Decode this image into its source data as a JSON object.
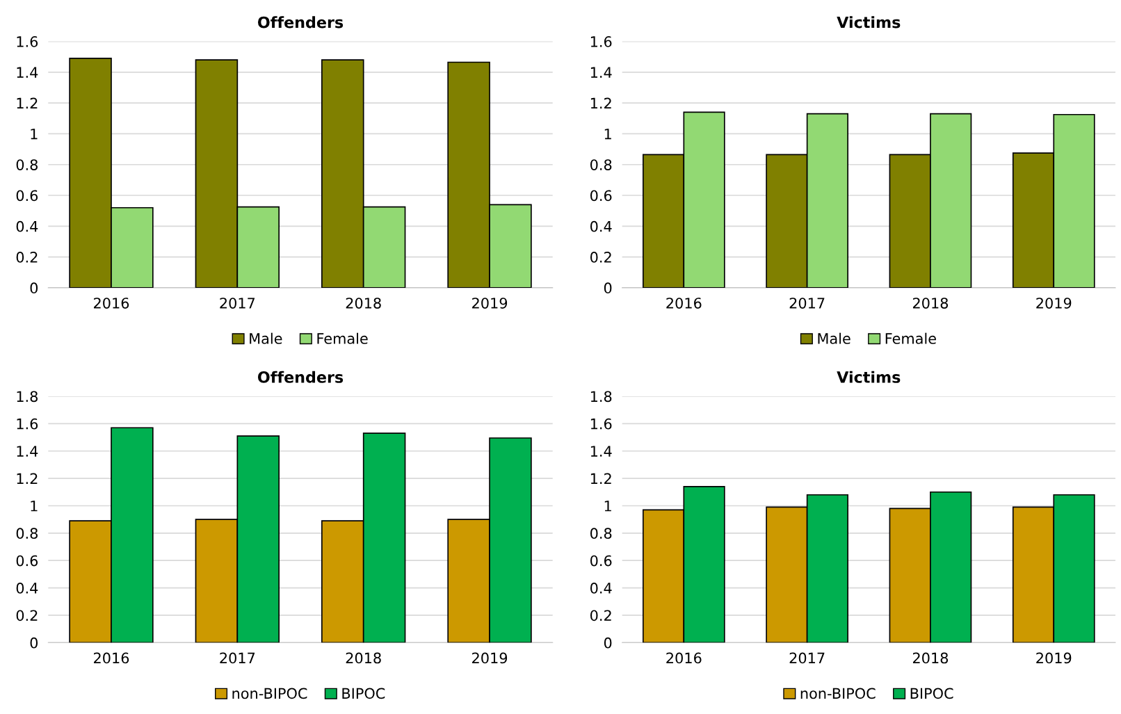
{
  "chart_data": [
    {
      "type": "bar",
      "title": "Offenders",
      "categories": [
        "2016",
        "2017",
        "2018",
        "2019"
      ],
      "series": [
        {
          "name": "Male",
          "color": "#808000",
          "values": [
            1.49,
            1.48,
            1.48,
            1.465
          ]
        },
        {
          "name": "Female",
          "color": "#92d973",
          "values": [
            0.52,
            0.525,
            0.525,
            0.54
          ]
        }
      ],
      "ylim": [
        0,
        1.6
      ],
      "yticks": [
        0,
        0.2,
        0.4,
        0.6,
        0.8,
        1,
        1.2,
        1.4,
        1.6
      ],
      "grid": "y",
      "legend": "bottom"
    },
    {
      "type": "bar",
      "title": "Victims",
      "categories": [
        "2016",
        "2017",
        "2018",
        "2019"
      ],
      "series": [
        {
          "name": "Male",
          "color": "#808000",
          "values": [
            0.865,
            0.865,
            0.865,
            0.875
          ]
        },
        {
          "name": "Female",
          "color": "#92d973",
          "values": [
            1.14,
            1.13,
            1.13,
            1.125
          ]
        }
      ],
      "ylim": [
        0,
        1.6
      ],
      "yticks": [
        0,
        0.2,
        0.4,
        0.6,
        0.8,
        1,
        1.2,
        1.4,
        1.6
      ],
      "grid": "y",
      "legend": "bottom"
    },
    {
      "type": "bar",
      "title": "Offenders",
      "categories": [
        "2016",
        "2017",
        "2018",
        "2019"
      ],
      "series": [
        {
          "name": "non-BIPOC",
          "color": "#cc9900",
          "values": [
            0.89,
            0.9,
            0.89,
            0.9
          ]
        },
        {
          "name": "BIPOC",
          "color": "#00b050",
          "values": [
            1.57,
            1.51,
            1.53,
            1.495
          ]
        }
      ],
      "ylim": [
        0,
        1.8
      ],
      "yticks": [
        0,
        0.2,
        0.4,
        0.6,
        0.8,
        1,
        1.2,
        1.4,
        1.6,
        1.8
      ],
      "grid": "y",
      "legend": "bottom"
    },
    {
      "type": "bar",
      "title": "Victims",
      "categories": [
        "2016",
        "2017",
        "2018",
        "2019"
      ],
      "series": [
        {
          "name": "non-BIPOC",
          "color": "#cc9900",
          "values": [
            0.97,
            0.99,
            0.98,
            0.99
          ]
        },
        {
          "name": "BIPOC",
          "color": "#00b050",
          "values": [
            1.14,
            1.08,
            1.1,
            1.08
          ]
        }
      ],
      "ylim": [
        0,
        1.8
      ],
      "yticks": [
        0,
        0.2,
        0.4,
        0.6,
        0.8,
        1,
        1.2,
        1.4,
        1.6,
        1.8
      ],
      "grid": "y",
      "legend": "bottom"
    }
  ]
}
